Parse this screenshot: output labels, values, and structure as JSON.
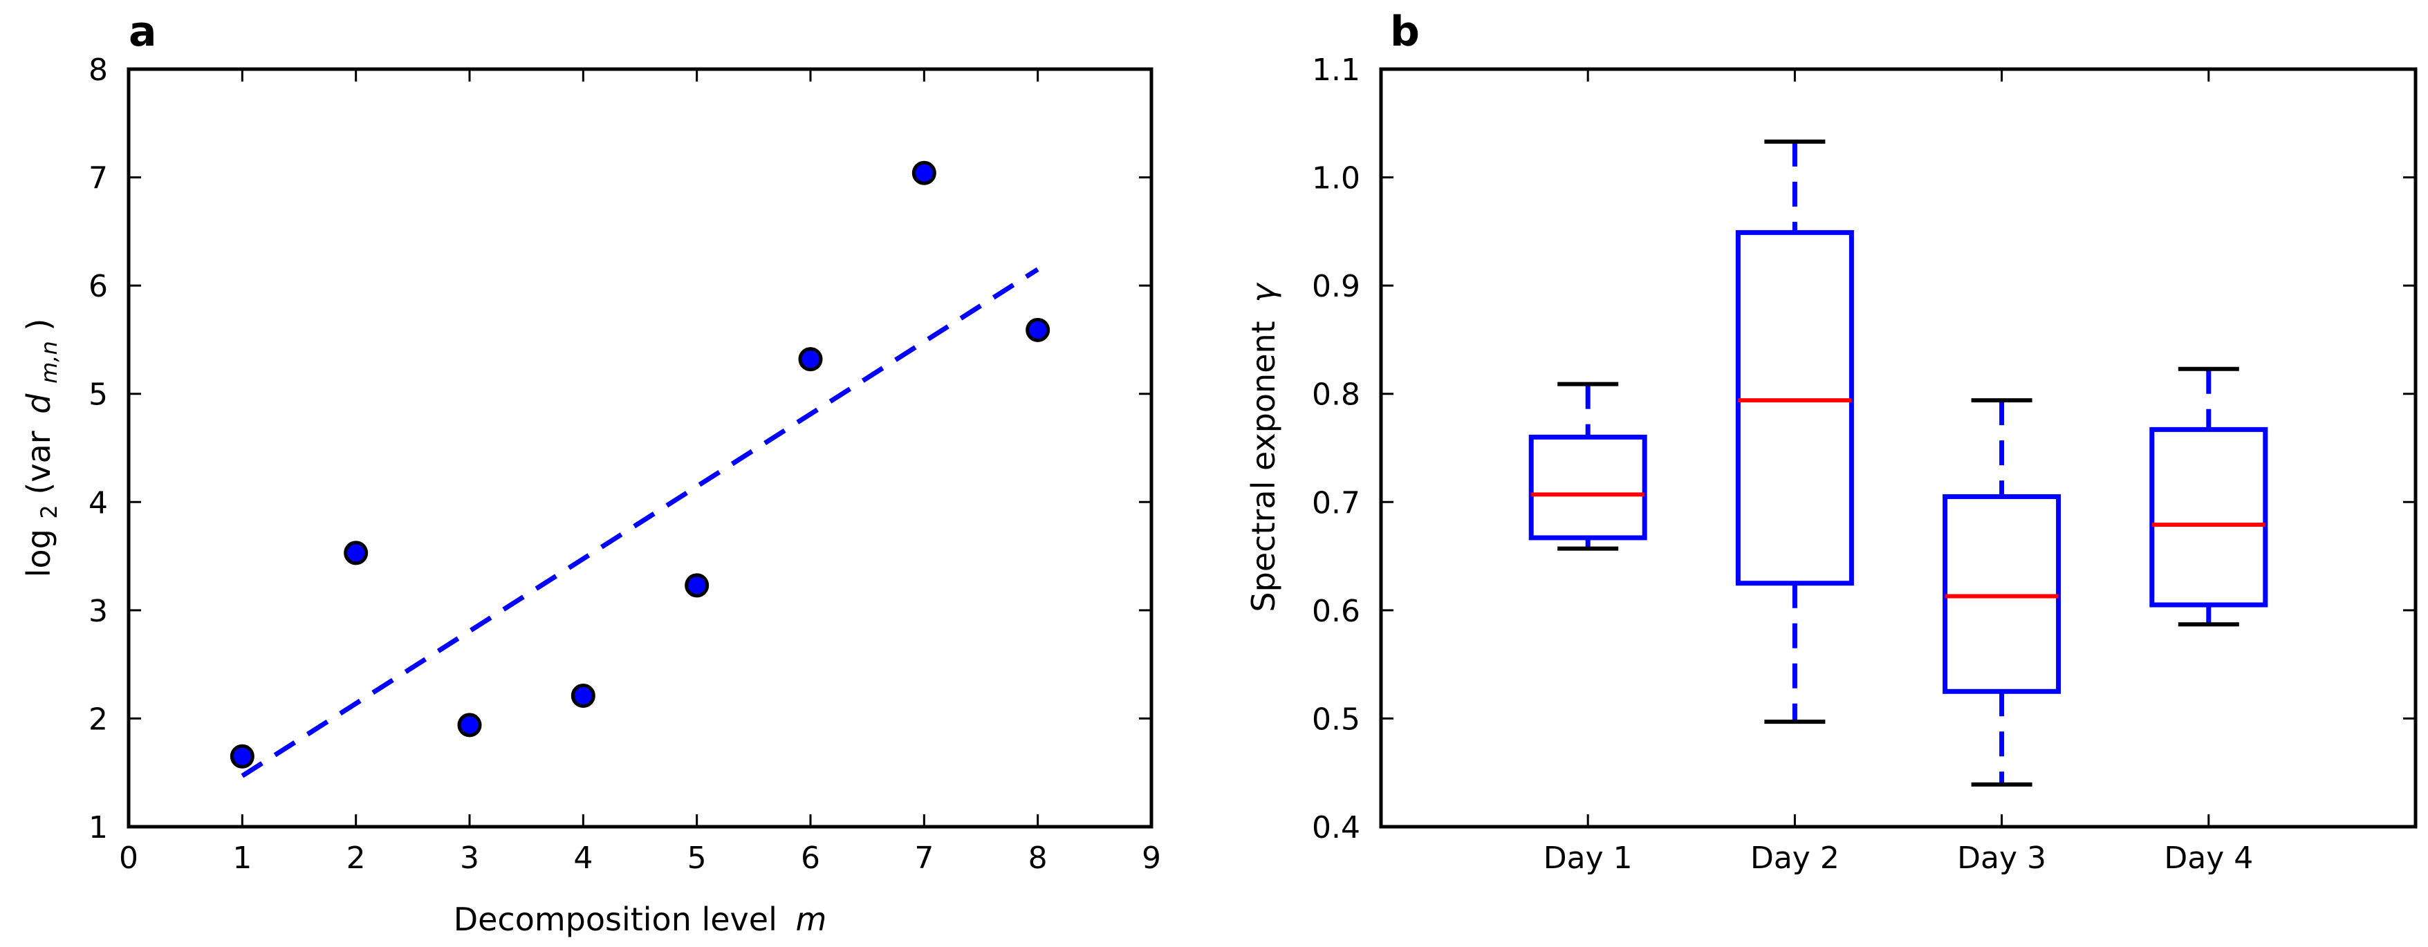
{
  "chart_data": [
    {
      "panel": "a",
      "type": "scatter",
      "xlabel_text": "Decomposition level",
      "xlabel_var": "m",
      "ylabel_pre": "log",
      "ylabel_sub": "2",
      "ylabel_mid": "(var",
      "ylabel_var": "d",
      "ylabel_var_sub": "m,n",
      "ylabel_post": ")",
      "xlim": [
        0,
        9
      ],
      "ylim": [
        1,
        8
      ],
      "xticks": [
        0,
        1,
        2,
        3,
        4,
        5,
        6,
        7,
        8,
        9
      ],
      "yticks": [
        1,
        2,
        3,
        4,
        5,
        6,
        7,
        8
      ],
      "points": {
        "x": [
          1,
          2,
          3,
          4,
          5,
          6,
          7,
          8
        ],
        "y": [
          1.65,
          3.53,
          1.94,
          2.21,
          3.23,
          5.32,
          7.04,
          5.59
        ]
      },
      "fit_line": {
        "x": [
          1,
          8
        ],
        "y": [
          1.47,
          6.15
        ],
        "style": "dashed"
      },
      "marker_color": "#0000ff",
      "line_color": "#0000ff"
    },
    {
      "panel": "b",
      "type": "boxplot",
      "ylabel_text": "Spectral exponent",
      "ylabel_var": "γ",
      "ylim": [
        0.4,
        1.1
      ],
      "yticks": [
        "0.4",
        "0.5",
        "0.6",
        "0.7",
        "0.8",
        "0.9",
        "1.0",
        "1.1"
      ],
      "categories": [
        "Day 1",
        "Day 2",
        "Day 3",
        "Day 4"
      ],
      "boxes": [
        {
          "whislo": 0.657,
          "q1": 0.667,
          "median": 0.707,
          "q3": 0.76,
          "whishi": 0.809
        },
        {
          "whislo": 0.497,
          "q1": 0.625,
          "median": 0.794,
          "q3": 0.949,
          "whishi": 1.033
        },
        {
          "whislo": 0.439,
          "q1": 0.525,
          "median": 0.613,
          "q3": 0.705,
          "whishi": 0.794
        },
        {
          "whislo": 0.587,
          "q1": 0.605,
          "median": 0.679,
          "q3": 0.767,
          "whishi": 0.823
        }
      ],
      "box_color": "#0000ff",
      "median_color": "#ff0000",
      "cap_color": "#000000"
    }
  ]
}
